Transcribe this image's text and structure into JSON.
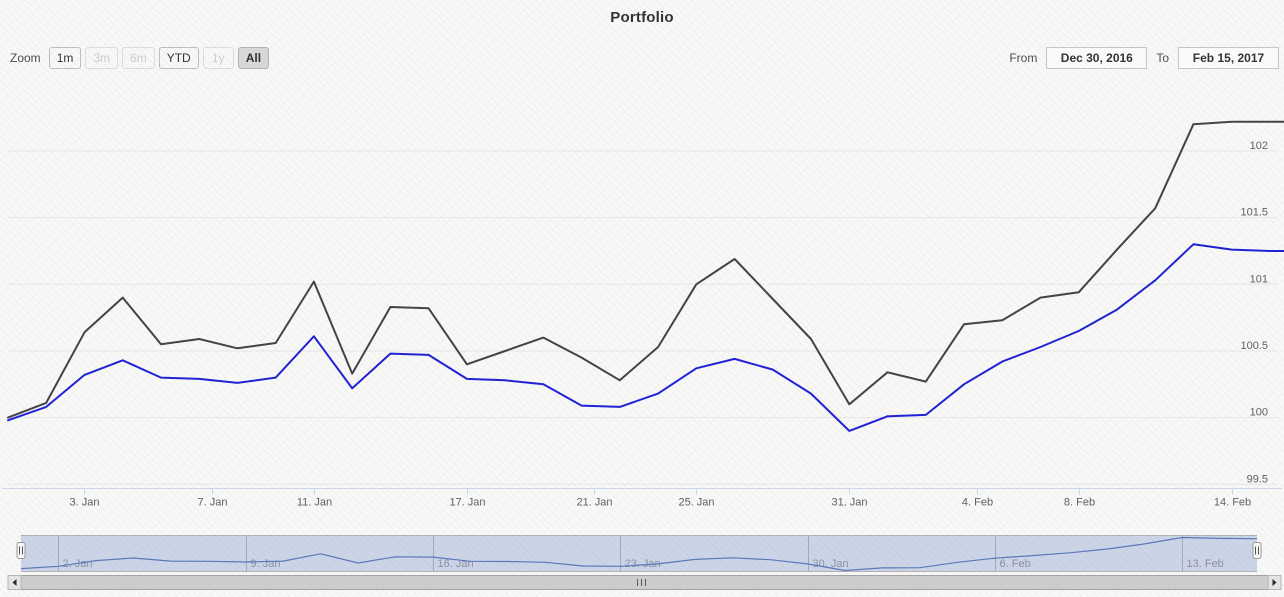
{
  "title": "Portfolio",
  "range_selector": {
    "zoom_label": "Zoom",
    "buttons": [
      {
        "label": "1m",
        "state": "enabled"
      },
      {
        "label": "3m",
        "state": "disabled"
      },
      {
        "label": "6m",
        "state": "disabled"
      },
      {
        "label": "YTD",
        "state": "enabled"
      },
      {
        "label": "1y",
        "state": "disabled"
      },
      {
        "label": "All",
        "state": "selected"
      }
    ],
    "from_label": "From",
    "from_value": "Dec 30, 2016",
    "to_label": "To",
    "to_value": "Feb 15, 2017"
  },
  "chart_data": {
    "type": "line",
    "title": "Portfolio",
    "legend": false,
    "x": [
      "Dec 30",
      "Jan 2",
      "Jan 3",
      "Jan 4",
      "Jan 5",
      "Jan 6",
      "Jan 9",
      "Jan 10",
      "Jan 11",
      "Jan 12",
      "Jan 13",
      "Jan 16",
      "Jan 17",
      "Jan 18",
      "Jan 19",
      "Jan 20",
      "Jan 23",
      "Jan 24",
      "Jan 25",
      "Jan 26",
      "Jan 27",
      "Jan 30",
      "Jan 31",
      "Feb 1",
      "Feb 2",
      "Feb 3",
      "Feb 6",
      "Feb 7",
      "Feb 8",
      "Feb 9",
      "Feb 10",
      "Feb 13",
      "Feb 14",
      "Feb 15"
    ],
    "series": [
      {
        "name": "series_dark",
        "color": "#434348",
        "values": [
          100.0,
          100.11,
          100.64,
          100.9,
          100.55,
          100.59,
          100.52,
          100.56,
          101.02,
          100.33,
          100.83,
          100.82,
          100.4,
          100.5,
          100.6,
          100.45,
          100.28,
          100.53,
          101.0,
          101.19,
          100.89,
          100.59,
          100.1,
          100.34,
          100.27,
          100.7,
          100.73,
          100.9,
          100.94,
          101.26,
          101.57,
          102.2,
          102.22,
          102.22
        ]
      },
      {
        "name": "series_blue",
        "color": "#2222d5",
        "values": [
          99.98,
          100.08,
          100.32,
          100.43,
          100.3,
          100.29,
          100.26,
          100.3,
          100.61,
          100.22,
          100.48,
          100.47,
          100.29,
          100.28,
          100.25,
          100.09,
          100.08,
          100.18,
          100.37,
          100.44,
          100.36,
          100.18,
          99.9,
          100.01,
          100.02,
          100.25,
          100.42,
          100.53,
          100.65,
          100.81,
          101.03,
          101.3,
          101.26,
          101.25
        ]
      }
    ],
    "yaxis": {
      "position": "right",
      "grid": true,
      "ticks": [
        102,
        101.5,
        101,
        100.5,
        100,
        99.5
      ],
      "range": [
        99.4,
        102.35
      ]
    },
    "xaxis": {
      "ticks": [
        {
          "label": "3. Jan",
          "index": 2
        },
        {
          "label": "7. Jan",
          "index": 5.33
        },
        {
          "label": "11. Jan",
          "index": 8
        },
        {
          "label": "17. Jan",
          "index": 12
        },
        {
          "label": "21. Jan",
          "index": 15.33
        },
        {
          "label": "25. Jan",
          "index": 18
        },
        {
          "label": "31. Jan",
          "index": 22
        },
        {
          "label": "4. Feb",
          "index": 25.33
        },
        {
          "label": "8. Feb",
          "index": 28
        },
        {
          "label": "14. Feb",
          "index": 32
        }
      ]
    },
    "navigator": {
      "shows_series": "series_blue",
      "line_color": "#5b78b8",
      "mask_color": "rgba(102,133,194,0.3)",
      "outline_color": "#b2b1b6",
      "ticks": [
        {
          "label": "2. Jan",
          "index": 1
        },
        {
          "label": "9. Jan",
          "index": 6
        },
        {
          "label": "16. Jan",
          "index": 11
        },
        {
          "label": "23. Jan",
          "index": 16
        },
        {
          "label": "30. Jan",
          "index": 21
        },
        {
          "label": "6. Feb",
          "index": 26
        },
        {
          "label": "13. Feb",
          "index": 31
        }
      ]
    }
  },
  "colors": {
    "grid_line": "#e6e6e6",
    "axis_line": "#ccd6eb",
    "axis_label": "#606060",
    "nav_label": "#8b90a0",
    "scrollbar_track": "#f0f0f0",
    "scrollbar_thumb": "#cccccc"
  }
}
